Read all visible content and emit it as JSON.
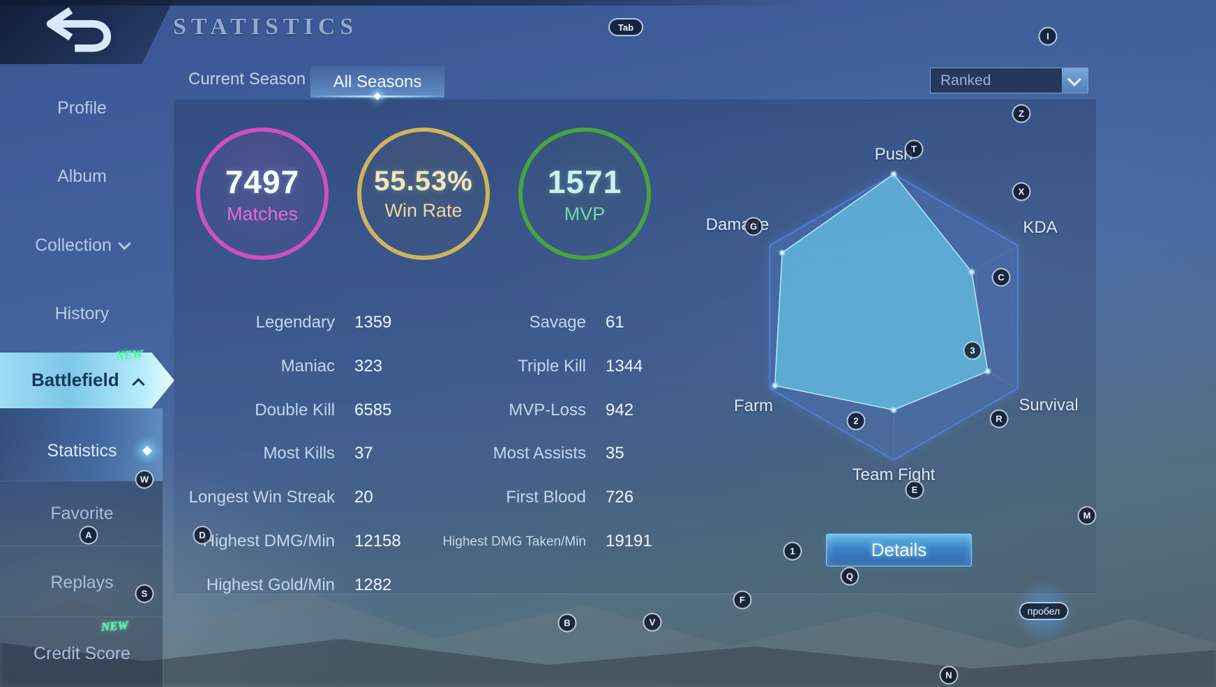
{
  "header": {
    "title": "STATISTICS",
    "tabs": [
      {
        "label": "Current Season",
        "active": false
      },
      {
        "label": "All Seasons",
        "active": true
      }
    ],
    "filter": {
      "value": "Ranked"
    }
  },
  "sidebar": {
    "items": [
      {
        "label": "Profile"
      },
      {
        "label": "Album"
      },
      {
        "label": "Collection",
        "has_chevron": "down"
      },
      {
        "label": "History"
      },
      {
        "label": "Battlefield",
        "selected": true,
        "badge": "NEW",
        "has_chevron": "up"
      },
      {
        "label": "Statistics",
        "sub_item": true,
        "selected": true
      },
      {
        "label": "Favorite"
      },
      {
        "label": "Replays"
      },
      {
        "label": "Credit Score",
        "badge": "NEW"
      }
    ]
  },
  "summary": [
    {
      "value": "7497",
      "label": "Matches",
      "ring_color": "#cf4fc0",
      "value_color": "#f8feff",
      "label_color": "#e46ad8"
    },
    {
      "value": "55.53%",
      "label": "Win Rate",
      "ring_color": "#cdb35e",
      "value_color": "#f5e6b0",
      "label_color": "#ead9a0"
    },
    {
      "value": "1571",
      "label": "MVP",
      "ring_color": "#4aa23e",
      "value_color": "#c9f2ea",
      "label_color": "#72d8ac"
    }
  ],
  "stats_left": [
    {
      "label": "Legendary",
      "value": "1359"
    },
    {
      "label": "Maniac",
      "value": "323"
    },
    {
      "label": "Double Kill",
      "value": "6585"
    },
    {
      "label": "Most Kills",
      "value": "37"
    },
    {
      "label": "Longest Win Streak",
      "value": "20"
    },
    {
      "label": "Highest DMG/Min",
      "value": "12158"
    },
    {
      "label": "Highest Gold/Min",
      "value": "1282"
    }
  ],
  "stats_right": [
    {
      "label": "Savage",
      "value": "61"
    },
    {
      "label": "Triple Kill",
      "value": "1344"
    },
    {
      "label": "MVP-Loss",
      "value": "942"
    },
    {
      "label": "Most Assists",
      "value": "35"
    },
    {
      "label": "First Blood",
      "value": "726"
    },
    {
      "label": "Highest DMG Taken/Min",
      "value": "19191"
    }
  ],
  "chart_data": {
    "type": "radar",
    "axes": [
      {
        "label": "Push",
        "value": 1.0
      },
      {
        "label": "KDA",
        "value": 0.63
      },
      {
        "label": "Survival",
        "value": 0.76
      },
      {
        "label": "Team Fight",
        "value": 0.65
      },
      {
        "label": "Farm",
        "value": 0.96
      },
      {
        "label": "Damage",
        "value": 0.9
      }
    ],
    "scale_min": 0,
    "scale_max": 1,
    "grid_rings": 3,
    "fill_color": "rgba(97,186,221,0.82)",
    "legend": "none"
  },
  "details_button": {
    "label": "Details"
  },
  "key_hints": [
    {
      "label": "Tab"
    },
    {
      "label": "I"
    },
    {
      "label": "Z"
    },
    {
      "label": "T"
    },
    {
      "label": "X"
    },
    {
      "label": "G"
    },
    {
      "label": "C"
    },
    {
      "label": "3"
    },
    {
      "label": "R"
    },
    {
      "label": "2"
    },
    {
      "label": "E"
    },
    {
      "label": "M"
    },
    {
      "label": "W"
    },
    {
      "label": "A"
    },
    {
      "label": "D"
    },
    {
      "label": "S"
    },
    {
      "label": "1"
    },
    {
      "label": "Q"
    },
    {
      "label": "F"
    },
    {
      "label": "B"
    },
    {
      "label": "V"
    },
    {
      "label": "N"
    },
    {
      "label": "пробел"
    }
  ]
}
